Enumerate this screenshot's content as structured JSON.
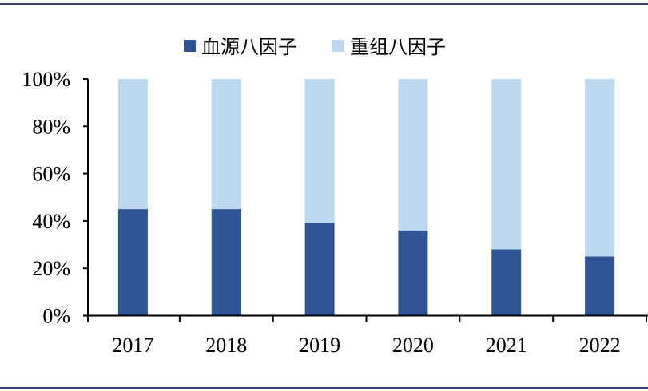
{
  "chart_data": {
    "type": "bar",
    "stacked": true,
    "categories": [
      "2017",
      "2018",
      "2019",
      "2020",
      "2021",
      "2022"
    ],
    "series": [
      {
        "name": "血源八因子",
        "color": "#2F5597",
        "values": [
          45,
          45,
          39,
          36,
          28,
          25
        ]
      },
      {
        "name": "重组八因子",
        "color": "#BDD7EE",
        "values": [
          55,
          55,
          61,
          64,
          72,
          75
        ]
      }
    ],
    "yticks": [
      "0%",
      "20%",
      "40%",
      "60%",
      "80%",
      "100%"
    ],
    "ylim": [
      0,
      100
    ],
    "title": "",
    "xlabel": "",
    "ylabel": "",
    "grid": false,
    "legend_position": "top-center"
  }
}
